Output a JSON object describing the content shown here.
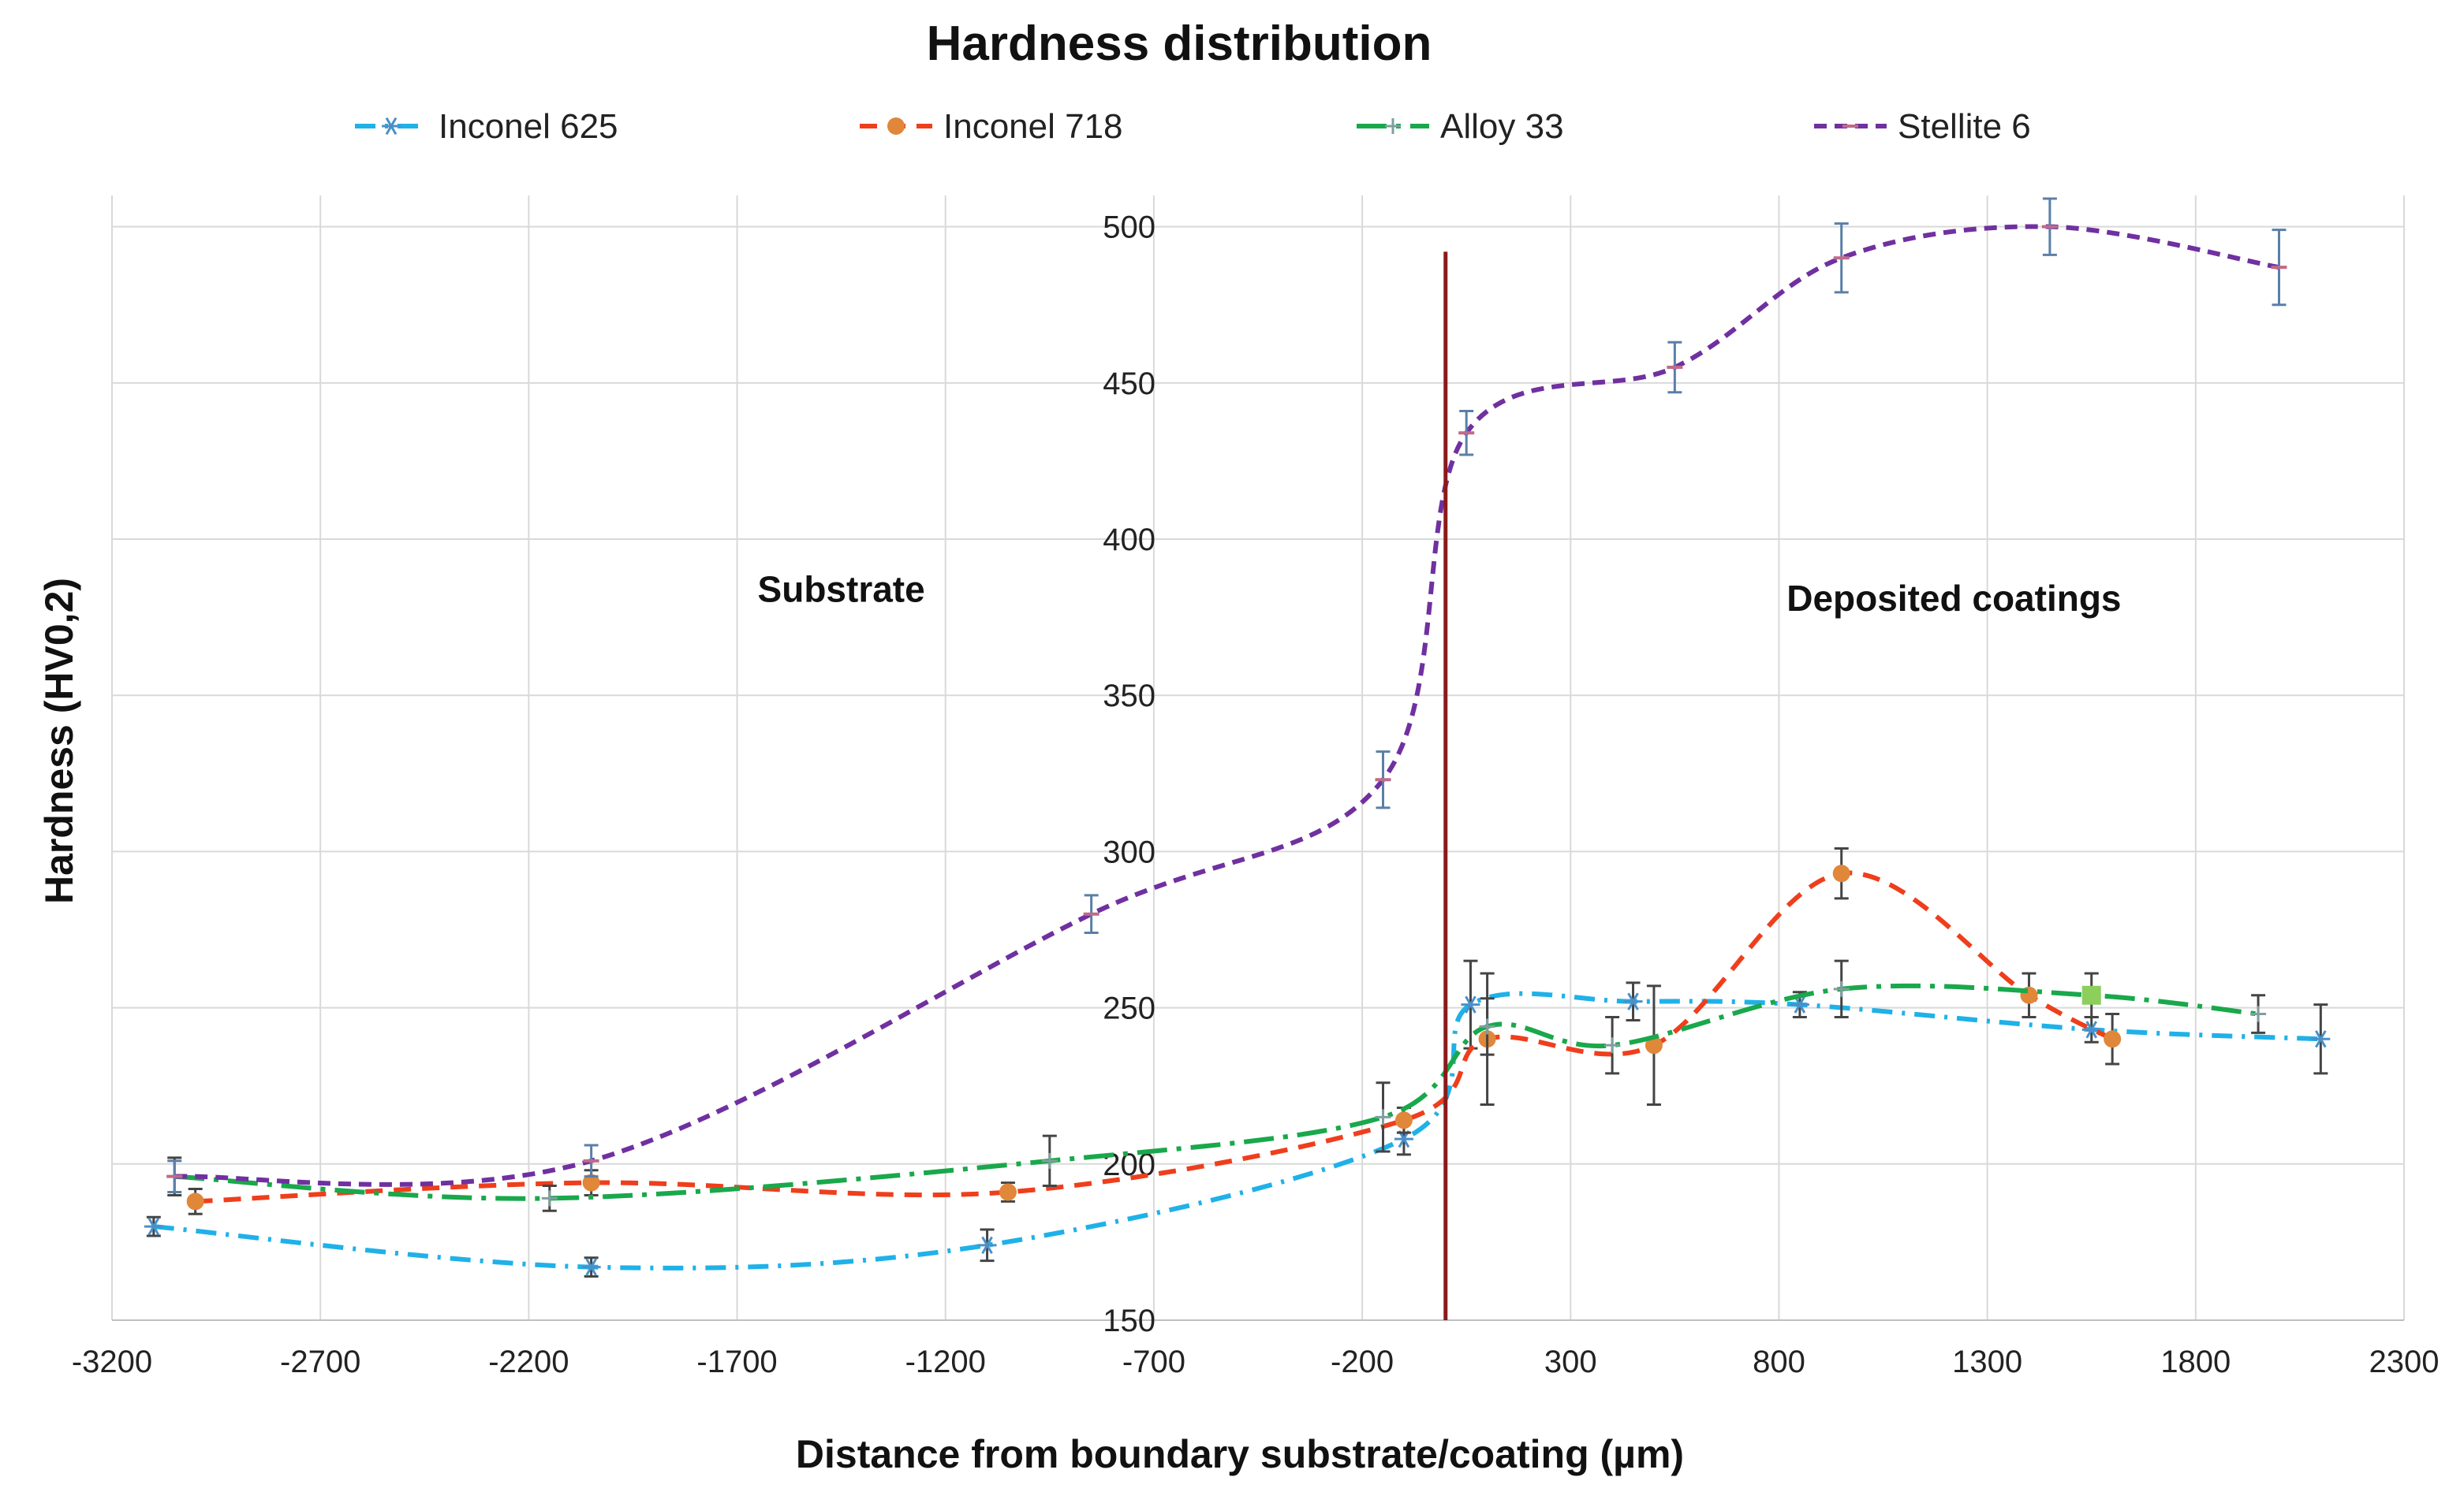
{
  "chart_data": {
    "type": "line",
    "title": "Hardness distribution",
    "xlabel": "Distance from boundary substrate/coating (µm)",
    "ylabel": "Hardness (HV0,2)",
    "xlim": [
      -3200,
      2300
    ],
    "ylim": [
      150,
      510
    ],
    "x_ticks": [
      -3200,
      -2700,
      -2200,
      -1700,
      -1200,
      -700,
      -200,
      300,
      800,
      1300,
      1800,
      2300
    ],
    "y_ticks": [
      150,
      200,
      250,
      300,
      350,
      400,
      450,
      500
    ],
    "grid": true,
    "legend_position": "top",
    "boundary_x": 0,
    "boundary_color": "#8b1a1a",
    "annotations": [
      {
        "text": "Substrate",
        "x": -1450,
        "y": 380
      },
      {
        "text": "Deposited coatings",
        "x": 1220,
        "y": 377
      }
    ],
    "series": [
      {
        "name": "Inconel 625",
        "color": "#1fb1e8",
        "dash": "dashdot",
        "marker": "asterisk",
        "points": [
          {
            "x": -3100,
            "y": 180,
            "err": 3
          },
          {
            "x": -2050,
            "y": 167,
            "err": 3
          },
          {
            "x": -1100,
            "y": 174,
            "err": 5
          },
          {
            "x": -100,
            "y": 208,
            "err": 5
          },
          {
            "x": 60,
            "y": 251,
            "err": 14
          },
          {
            "x": 450,
            "y": 252,
            "err": 6
          },
          {
            "x": 850,
            "y": 251,
            "err": 4
          },
          {
            "x": 1550,
            "y": 243,
            "err": 4
          },
          {
            "x": 2100,
            "y": 240,
            "err": 11
          }
        ]
      },
      {
        "name": "Inconel 718",
        "color": "#ef3e1c",
        "dash": "dash",
        "marker": "circle",
        "markerColor": "#e0873a",
        "points": [
          {
            "x": -3000,
            "y": 188,
            "err": 4
          },
          {
            "x": -2050,
            "y": 194,
            "err": 4
          },
          {
            "x": -1050,
            "y": 191,
            "err": 3
          },
          {
            "x": -100,
            "y": 214,
            "err": 4
          },
          {
            "x": 100,
            "y": 240,
            "err": 21
          },
          {
            "x": 500,
            "y": 238,
            "err": 19
          },
          {
            "x": 950,
            "y": 293,
            "err": 8
          },
          {
            "x": 1400,
            "y": 254,
            "err": 7
          },
          {
            "x": 1600,
            "y": 240,
            "err": 8
          }
        ]
      },
      {
        "name": "Alloy 33",
        "color": "#19a84b",
        "dash": "longdashdot",
        "marker": "plus",
        "points": [
          {
            "x": -3050,
            "y": 196,
            "err": 6
          },
          {
            "x": -2150,
            "y": 189,
            "err": 4
          },
          {
            "x": -950,
            "y": 201,
            "err": 8
          },
          {
            "x": -150,
            "y": 215,
            "err": 11
          },
          {
            "x": 100,
            "y": 244,
            "err": 9
          },
          {
            "x": 400,
            "y": 238,
            "err": 9
          },
          {
            "x": 950,
            "y": 256,
            "err": 9
          },
          {
            "x": 1550,
            "y": 254,
            "err": 7
          },
          {
            "x": 1950,
            "y": 248,
            "err": 6
          }
        ]
      },
      {
        "name": "Stellite 6",
        "color": "#7030a0",
        "dash": "shortdash",
        "marker": "dash",
        "points": [
          {
            "x": -3050,
            "y": 196,
            "err": 5
          },
          {
            "x": -2050,
            "y": 201,
            "err": 5
          },
          {
            "x": -850,
            "y": 280,
            "err": 6
          },
          {
            "x": -150,
            "y": 323,
            "err": 9
          },
          {
            "x": 50,
            "y": 434,
            "err": 7
          },
          {
            "x": 550,
            "y": 455,
            "err": 8
          },
          {
            "x": 950,
            "y": 490,
            "err": 11
          },
          {
            "x": 1450,
            "y": 500,
            "err": 9
          },
          {
            "x": 2000,
            "y": 487,
            "err": 12
          }
        ]
      }
    ],
    "extra_markers": [
      {
        "x": 1550,
        "y": 254,
        "color": "#8ccf5c",
        "shape": "square"
      }
    ]
  }
}
